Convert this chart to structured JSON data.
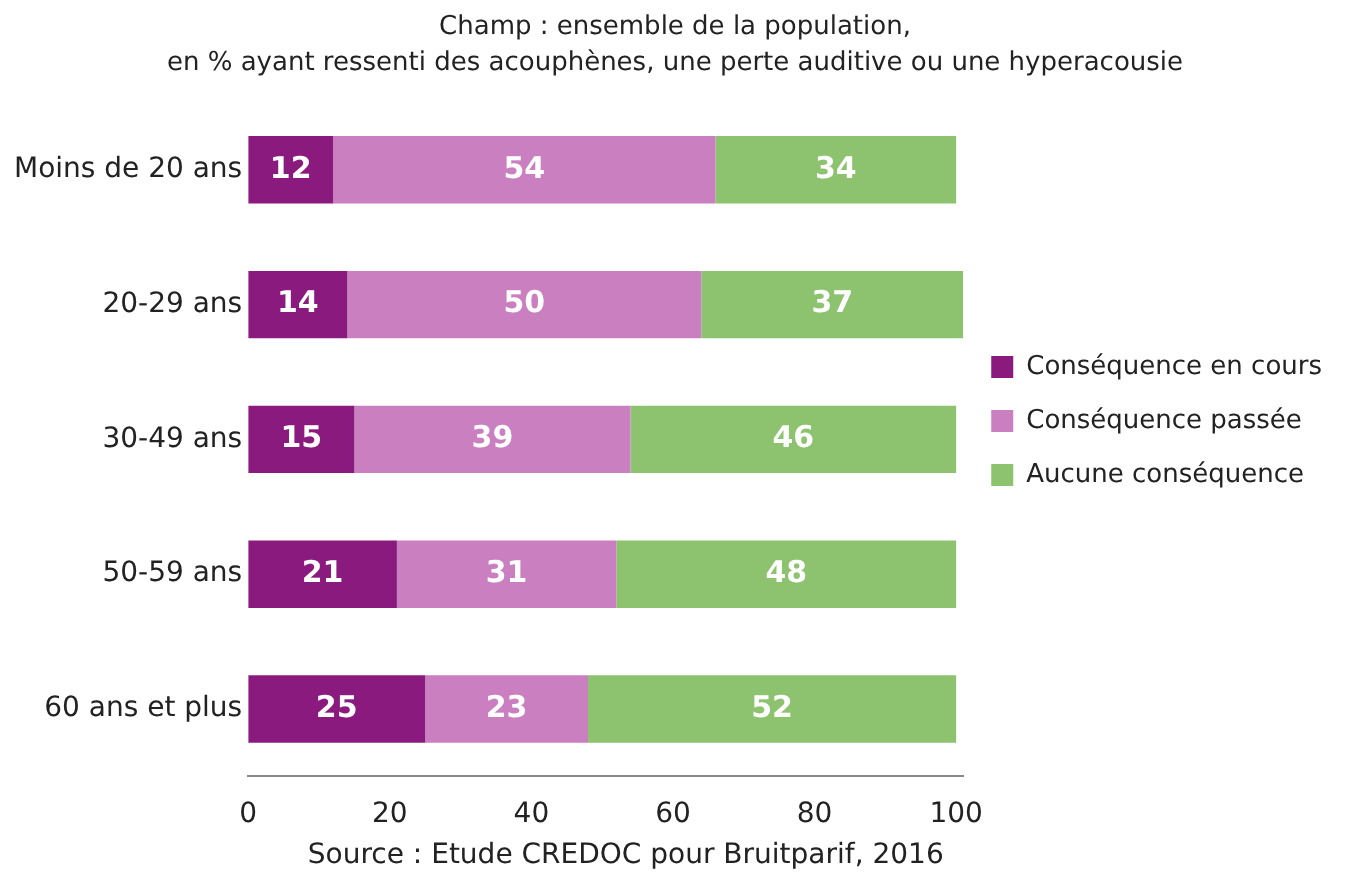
{
  "chart_data": {
    "type": "bar",
    "orientation": "horizontal",
    "stacked": true,
    "title": "Champ : ensemble de la population,",
    "subtitle": "en % ayant ressenti des acouphènes, une perte auditive ou une hyperacousie",
    "categories": [
      "Moins de 20 ans",
      "20-29 ans",
      "30-49 ans",
      "50-59 ans",
      "60 ans et plus"
    ],
    "series": [
      {
        "name": "Conséquence en cours",
        "color": "#8b1a7e",
        "values": [
          12,
          14,
          15,
          21,
          25
        ]
      },
      {
        "name": "Conséquence passée",
        "color": "#c97fc0",
        "values": [
          54,
          50,
          39,
          31,
          23
        ]
      },
      {
        "name": "Aucune conséquence",
        "color": "#8dc26f",
        "values": [
          34,
          37,
          46,
          48,
          52
        ]
      }
    ],
    "xlim": [
      0,
      101
    ],
    "xticks": [
      0,
      20,
      40,
      60,
      80,
      100
    ],
    "grid": false,
    "legend": "right",
    "data_labels": true,
    "annotations": [
      "Source : Etude CREDOC pour Bruitparif, 2016"
    ]
  }
}
